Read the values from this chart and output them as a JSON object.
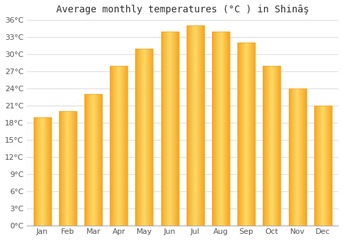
{
  "title": "Average monthly temperatures (°C ) in Shināş",
  "months": [
    "Jan",
    "Feb",
    "Mar",
    "Apr",
    "May",
    "Jun",
    "Jul",
    "Aug",
    "Sep",
    "Oct",
    "Nov",
    "Dec"
  ],
  "temperatures": [
    19,
    20,
    23,
    28,
    31,
    34,
    35,
    34,
    32,
    28,
    24,
    21
  ],
  "bar_color_left": "#F5A623",
  "bar_color_center": "#FFD966",
  "bar_color_right": "#F5A623",
  "ylim": [
    0,
    36
  ],
  "yticks": [
    0,
    3,
    6,
    9,
    12,
    15,
    18,
    21,
    24,
    27,
    30,
    33,
    36
  ],
  "ytick_labels": [
    "0°C",
    "3°C",
    "6°C",
    "9°C",
    "12°C",
    "15°C",
    "18°C",
    "21°C",
    "24°C",
    "27°C",
    "30°C",
    "33°C",
    "36°C"
  ],
  "background_color": "#ffffff",
  "grid_color": "#dddddd",
  "title_fontsize": 10,
  "tick_fontsize": 8,
  "bar_width": 0.7
}
